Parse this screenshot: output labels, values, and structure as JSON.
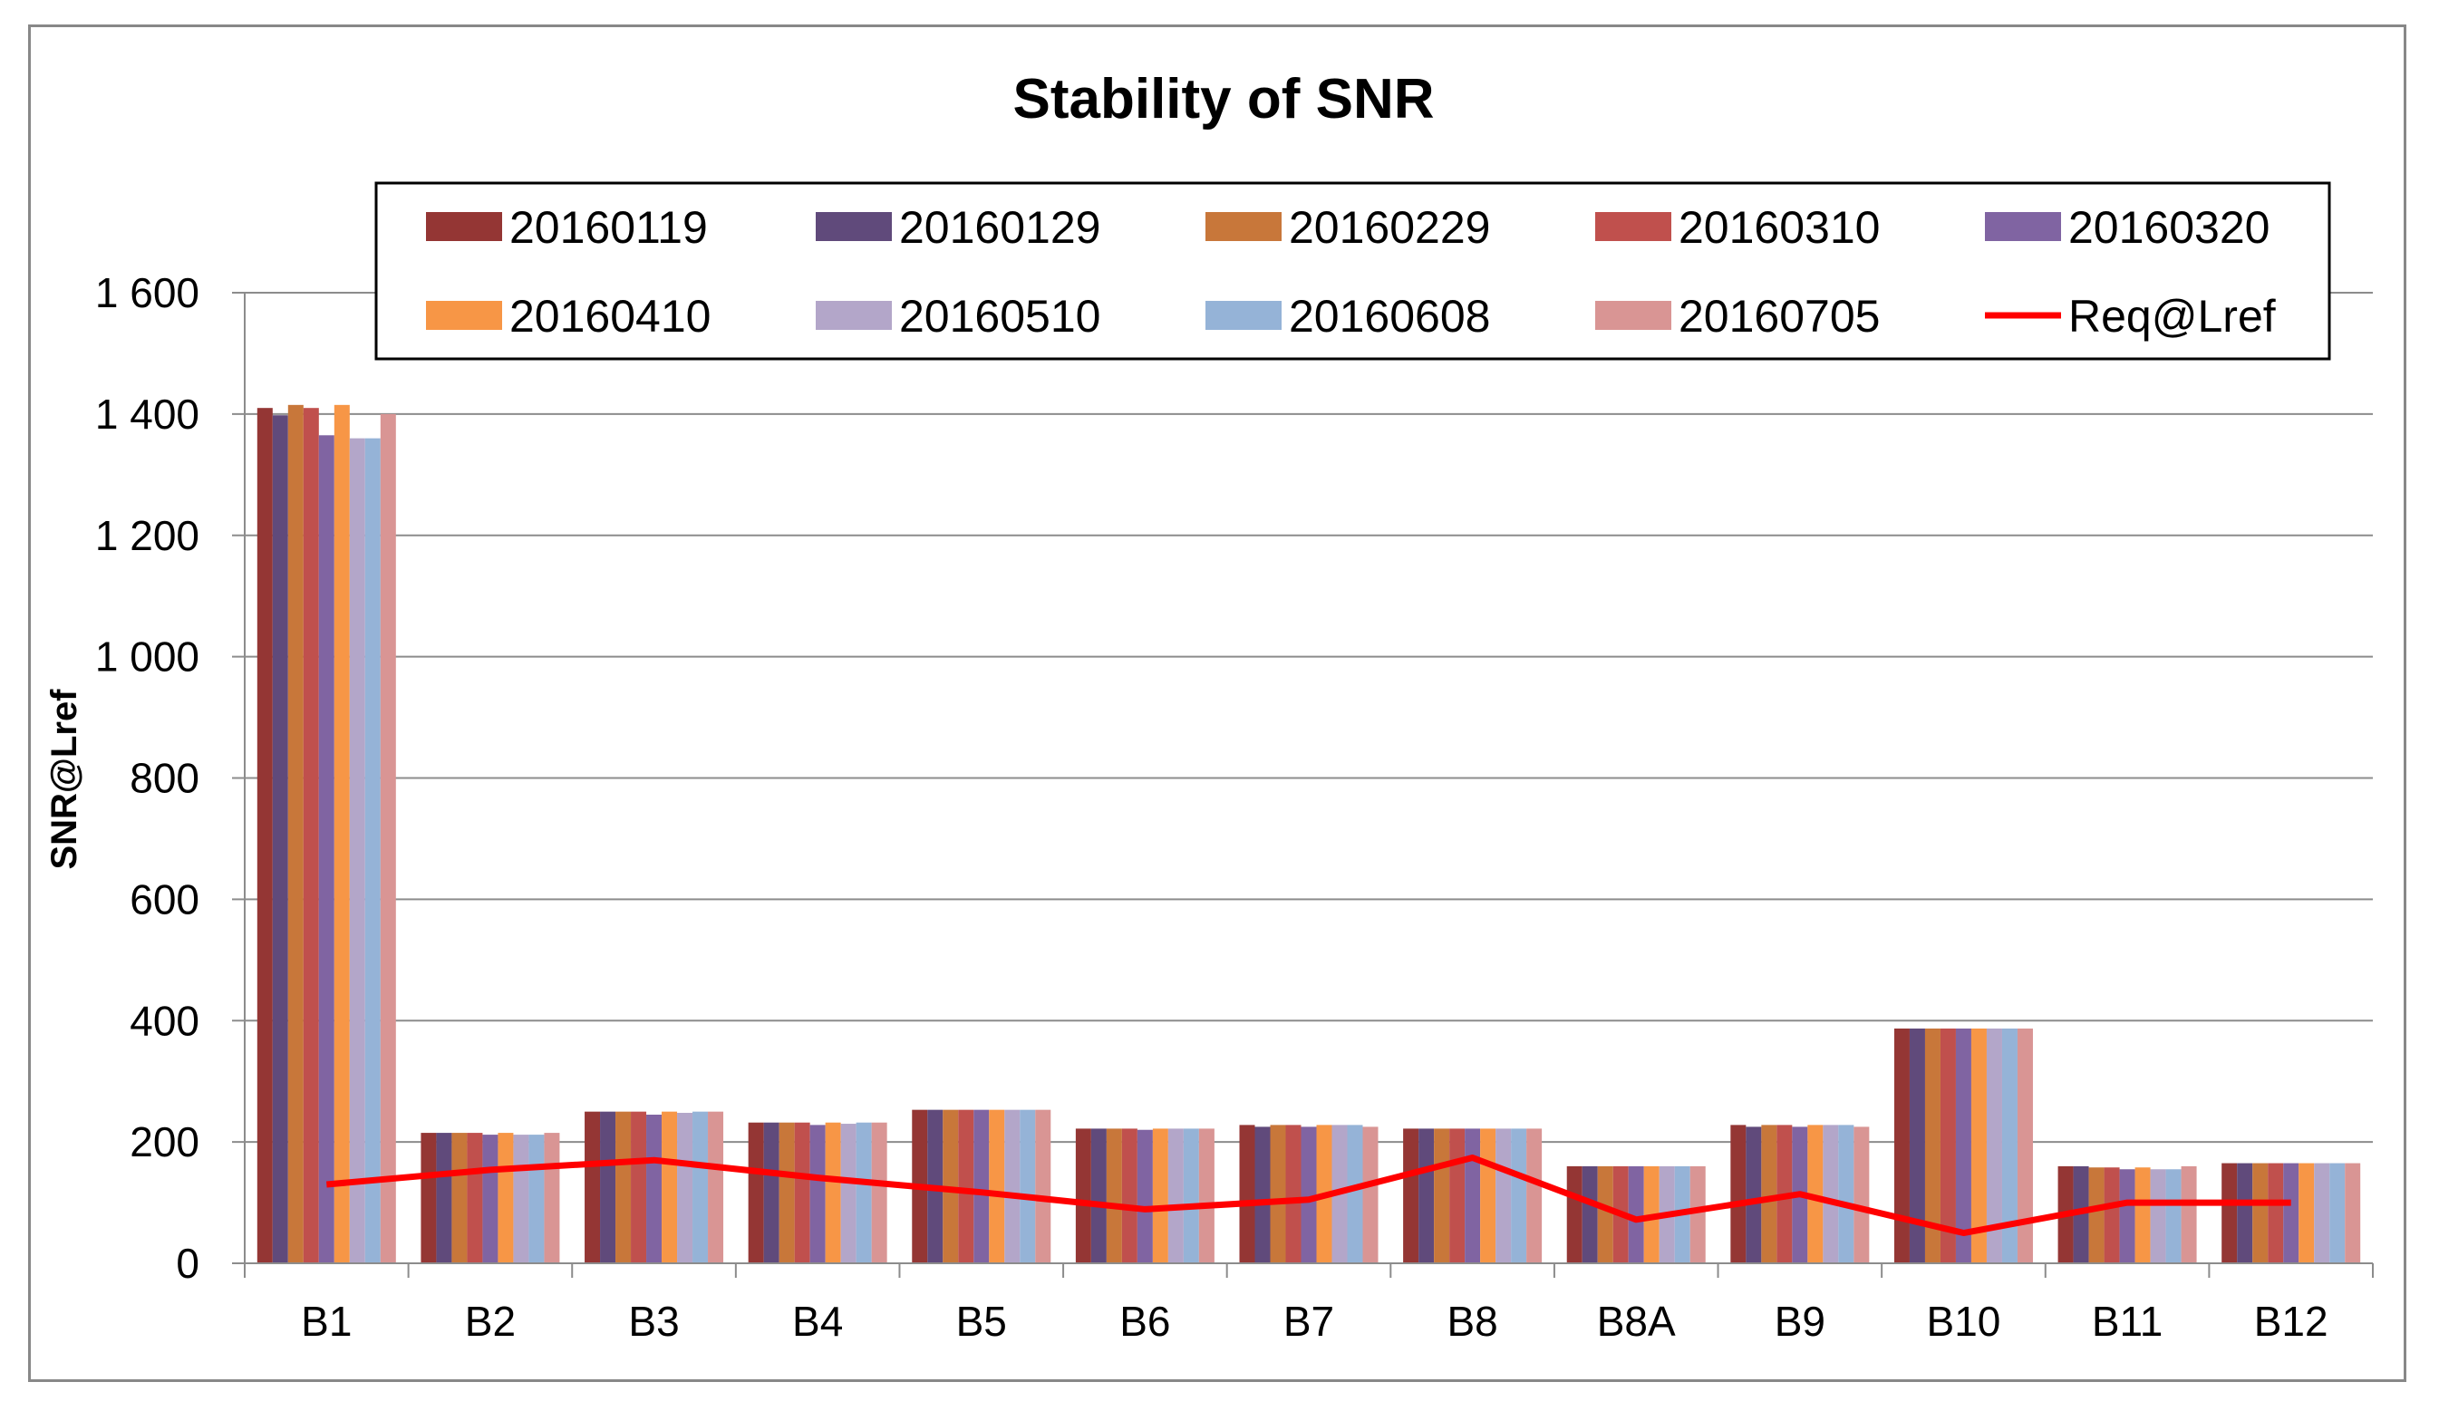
{
  "chart_data": {
    "type": "bar",
    "title": "Stability of SNR",
    "xlabel": "",
    "ylabel": "SNR@Lref",
    "ylim": [
      0,
      1600
    ],
    "yticks": [
      0,
      200,
      400,
      600,
      800,
      1000,
      1200,
      1400,
      1600
    ],
    "ytick_labels": [
      "0",
      "200",
      "400",
      "600",
      "800",
      "1 000",
      "1 200",
      "1 400",
      "1 600"
    ],
    "grid": true,
    "legend_position": "top",
    "categories": [
      "B1",
      "B2",
      "B3",
      "B4",
      "B5",
      "B6",
      "B7",
      "B8",
      "B8A",
      "B9",
      "B10",
      "B11",
      "B12"
    ],
    "series": [
      {
        "name": "20160119",
        "color": "#943634",
        "values": [
          1410,
          215,
          250,
          232,
          253,
          222,
          228,
          222,
          160,
          228,
          387,
          160,
          165
        ]
      },
      {
        "name": "20160129",
        "color": "#604A7B",
        "values": [
          1398,
          215,
          250,
          232,
          253,
          222,
          225,
          222,
          160,
          225,
          387,
          160,
          165
        ]
      },
      {
        "name": "20160229",
        "color": "#C8773A",
        "values": [
          1415,
          215,
          250,
          232,
          253,
          222,
          228,
          222,
          160,
          228,
          387,
          158,
          165
        ]
      },
      {
        "name": "20160310",
        "color": "#C0504D",
        "values": [
          1410,
          215,
          250,
          232,
          253,
          222,
          228,
          222,
          160,
          228,
          387,
          158,
          165
        ]
      },
      {
        "name": "20160320",
        "color": "#8064A2",
        "values": [
          1365,
          212,
          245,
          228,
          253,
          220,
          225,
          222,
          160,
          225,
          387,
          155,
          165
        ]
      },
      {
        "name": "20160410",
        "color": "#F79646",
        "values": [
          1415,
          215,
          250,
          232,
          253,
          222,
          228,
          222,
          160,
          228,
          387,
          158,
          165
        ]
      },
      {
        "name": "20160510",
        "color": "#B3A6C9",
        "values": [
          1360,
          212,
          248,
          230,
          253,
          222,
          228,
          222,
          160,
          228,
          387,
          155,
          165
        ]
      },
      {
        "name": "20160608",
        "color": "#95B3D7",
        "values": [
          1360,
          212,
          250,
          232,
          253,
          222,
          228,
          222,
          160,
          228,
          387,
          155,
          165
        ]
      },
      {
        "name": "20160705",
        "color": "#D99594",
        "values": [
          1400,
          215,
          250,
          232,
          253,
          222,
          225,
          222,
          160,
          225,
          387,
          160,
          165
        ]
      }
    ],
    "line_series": {
      "name": "Req@Lref",
      "color": "#FF0000",
      "values": [
        130,
        154,
        170,
        141,
        117,
        89,
        105,
        174,
        72,
        114,
        50,
        100,
        100
      ]
    }
  }
}
